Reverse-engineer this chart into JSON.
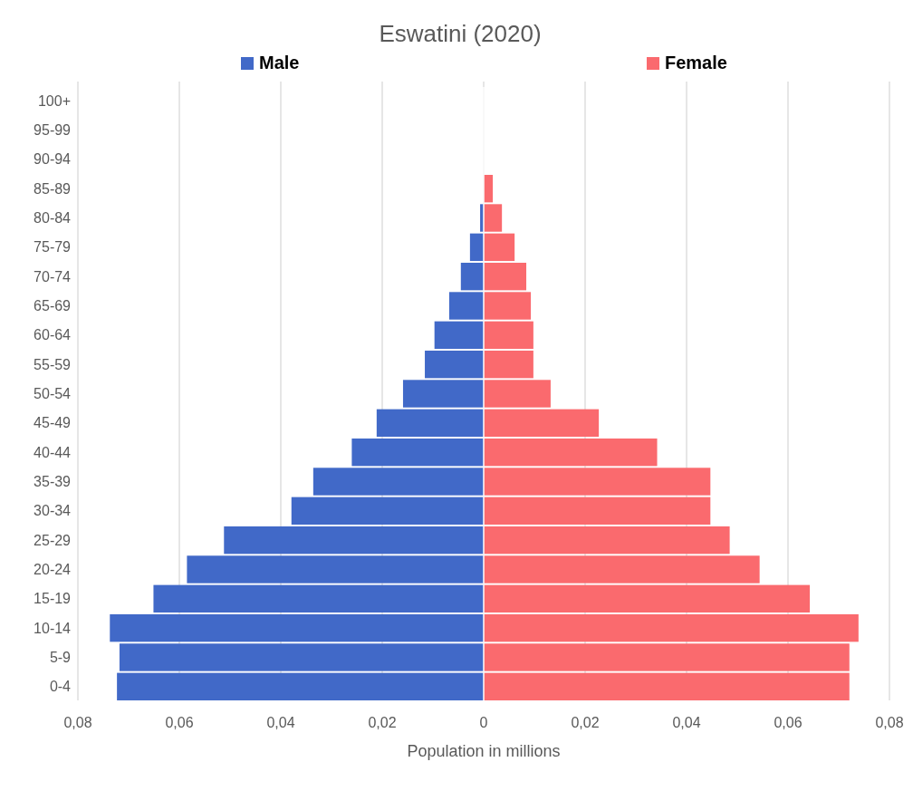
{
  "chart_data": {
    "type": "bar",
    "orientation": "horizontal",
    "stacked": true,
    "title": "Eswatini (2020)",
    "xlabel": "Population in millions",
    "categories": [
      "100+",
      "95-99",
      "90-94",
      "85-89",
      "80-84",
      "75-79",
      "70-74",
      "65-69",
      "60-64",
      "55-59",
      "50-54",
      "45-49",
      "40-44",
      "35-39",
      "30-34",
      "25-29",
      "20-24",
      "15-19",
      "10-14",
      "5-9",
      "0-4"
    ],
    "series": [
      {
        "name": "Male",
        "color": "#4169c8",
        "values": [
          0,
          0,
          0,
          null,
          -0.0007,
          -0.0027,
          -0.0045,
          -0.0068,
          -0.0097,
          -0.0116,
          -0.0159,
          -0.0211,
          -0.026,
          -0.0336,
          -0.0379,
          -0.0512,
          -0.0585,
          -0.0651,
          -0.0737,
          -0.0718,
          -0.0723
        ]
      },
      {
        "name": "Female",
        "color": "#fa6a6e",
        "values": [
          0,
          0,
          0,
          0.0018,
          0.0036,
          0.0061,
          0.0084,
          0.0093,
          0.0098,
          0.0098,
          0.0132,
          0.0227,
          0.0342,
          0.0447,
          0.0447,
          0.0485,
          0.0544,
          0.0643,
          0.0739,
          0.0721,
          0.0721
        ]
      }
    ],
    "xlim": [
      -0.08,
      0.08
    ],
    "xticks": [
      {
        "value": -0.08,
        "label": "0,08"
      },
      {
        "value": -0.06,
        "label": "0,06"
      },
      {
        "value": -0.04,
        "label": "0,04"
      },
      {
        "value": -0.02,
        "label": "0,02"
      },
      0,
      {
        "value": 0.02,
        "label": "0,02"
      },
      {
        "value": 0.04,
        "label": "0,04"
      },
      {
        "value": 0.06,
        "label": "0,06"
      },
      {
        "value": 0.08,
        "label": "0,08"
      }
    ],
    "grid": "x",
    "legend": "top"
  }
}
